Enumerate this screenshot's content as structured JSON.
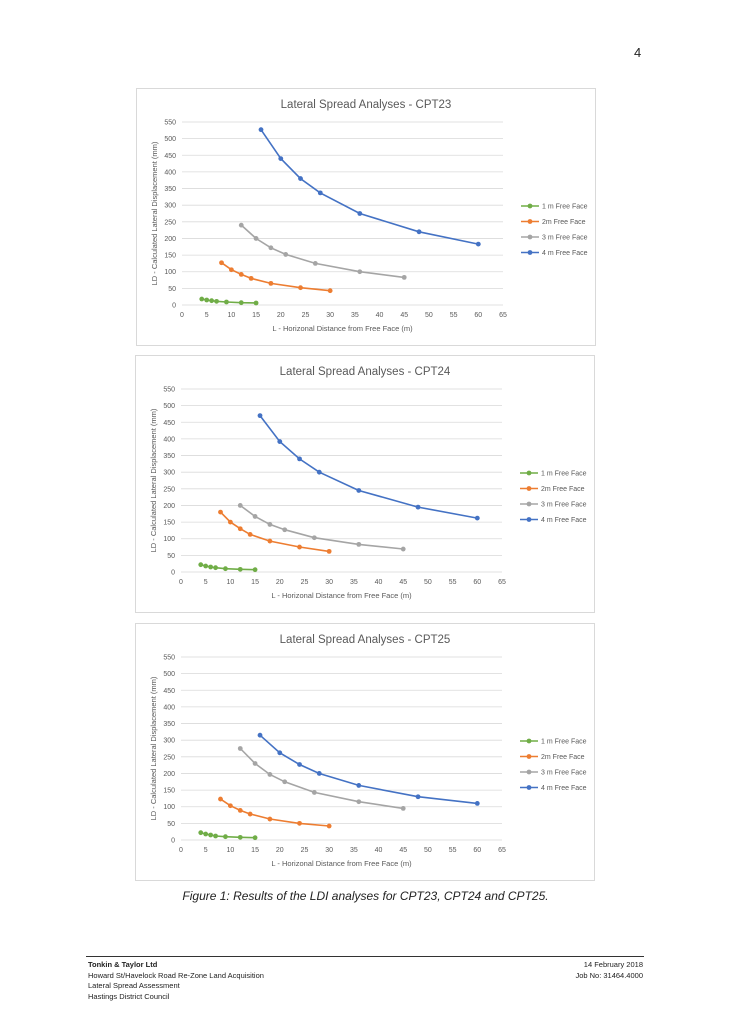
{
  "page_number": "4",
  "caption": "Figure 1: Results of the LDI analyses for CPT23, CPT24 and CPT25.",
  "footer": {
    "company": "Tonkin & Taylor Ltd",
    "project": "Howard St/Havelock Road Re-Zone Land Acquisition",
    "report": "Lateral Spread Assessment",
    "client": "Hastings District Council",
    "date": "14 February 2018",
    "job": "Job No: 31464.4000"
  },
  "colors": {
    "1m": "#70ad47",
    "2m": "#ed7d31",
    "3m": "#a5a5a5",
    "4m": "#4472c4",
    "gridline": "#d9d9d9",
    "tick_text": "#595959"
  },
  "chart_data": [
    {
      "type": "line",
      "title": "Lateral Spread Analyses - CPT23",
      "xlabel": "L - Horizonal Distance from Free Face (m)",
      "ylabel": "LD - Calculated Lateral Displacement (mm)",
      "xlim": [
        0,
        65
      ],
      "ylim": [
        0,
        550
      ],
      "xticks": [
        0,
        5,
        10,
        15,
        20,
        25,
        30,
        35,
        40,
        45,
        50,
        55,
        60,
        65
      ],
      "yticks": [
        0,
        50,
        100,
        150,
        200,
        250,
        300,
        350,
        400,
        450,
        500,
        550
      ],
      "grid": "horizontal",
      "legend_position": "right",
      "series": [
        {
          "name": "1 m Free Face",
          "color_key": "1m",
          "x": [
            4,
            5,
            6,
            7,
            9,
            12,
            15
          ],
          "y": [
            18,
            15,
            13,
            11,
            9,
            7,
            6
          ]
        },
        {
          "name": "2m Free Face",
          "color_key": "2m",
          "x": [
            8,
            10,
            12,
            14,
            18,
            24,
            30
          ],
          "y": [
            127,
            106,
            92,
            80,
            65,
            52,
            43
          ]
        },
        {
          "name": "3 m Free Face",
          "color_key": "3m",
          "x": [
            12,
            15,
            18,
            21,
            27,
            36,
            45
          ],
          "y": [
            240,
            200,
            172,
            152,
            125,
            100,
            83
          ]
        },
        {
          "name": "4 m Free Face",
          "color_key": "4m",
          "x": [
            16,
            20,
            24,
            28,
            36,
            48,
            60
          ],
          "y": [
            527,
            440,
            380,
            337,
            275,
            220,
            183
          ]
        }
      ]
    },
    {
      "type": "line",
      "title": "Lateral Spread Analyses - CPT24",
      "xlabel": "L - Horizonal Distance from Free Face (m)",
      "ylabel": "LD - Calculated Lateral Displacement (mm)",
      "xlim": [
        0,
        65
      ],
      "ylim": [
        0,
        550
      ],
      "xticks": [
        0,
        5,
        10,
        15,
        20,
        25,
        30,
        35,
        40,
        45,
        50,
        55,
        60,
        65
      ],
      "yticks": [
        0,
        50,
        100,
        150,
        200,
        250,
        300,
        350,
        400,
        450,
        500,
        550
      ],
      "grid": "horizontal",
      "legend_position": "right",
      "series": [
        {
          "name": "1 m Free Face",
          "color_key": "1m",
          "x": [
            4,
            5,
            6,
            7,
            9,
            12,
            15
          ],
          "y": [
            22,
            18,
            15,
            13,
            10,
            8,
            7
          ]
        },
        {
          "name": "2m Free Face",
          "color_key": "2m",
          "x": [
            8,
            10,
            12,
            14,
            18,
            24,
            30
          ],
          "y": [
            180,
            150,
            130,
            113,
            93,
            75,
            62
          ]
        },
        {
          "name": "3 m Free Face",
          "color_key": "3m",
          "x": [
            12,
            15,
            18,
            21,
            27,
            36,
            45
          ],
          "y": [
            200,
            167,
            143,
            127,
            103,
            83,
            69
          ]
        },
        {
          "name": "4 m Free Face",
          "color_key": "4m",
          "x": [
            16,
            20,
            24,
            28,
            36,
            48,
            60
          ],
          "y": [
            470,
            392,
            340,
            300,
            245,
            195,
            162
          ]
        }
      ]
    },
    {
      "type": "line",
      "title": "Lateral Spread Analyses - CPT25",
      "xlabel": "L - Horizonal Distance from Free Face (m)",
      "ylabel": "LD - Calculated Lateral Displacement (mm)",
      "xlim": [
        0,
        65
      ],
      "ylim": [
        0,
        550
      ],
      "xticks": [
        0,
        5,
        10,
        15,
        20,
        25,
        30,
        35,
        40,
        45,
        50,
        55,
        60,
        65
      ],
      "yticks": [
        0,
        50,
        100,
        150,
        200,
        250,
        300,
        350,
        400,
        450,
        500,
        550
      ],
      "grid": "horizontal",
      "legend_position": "right",
      "series": [
        {
          "name": "1 m Free Face",
          "color_key": "1m",
          "x": [
            4,
            5,
            6,
            7,
            9,
            12,
            15
          ],
          "y": [
            22,
            18,
            15,
            12,
            10,
            8,
            7
          ]
        },
        {
          "name": "2m Free Face",
          "color_key": "2m",
          "x": [
            8,
            10,
            12,
            14,
            18,
            24,
            30
          ],
          "y": [
            123,
            103,
            89,
            78,
            63,
            50,
            42
          ]
        },
        {
          "name": "3 m Free Face",
          "color_key": "3m",
          "x": [
            12,
            15,
            18,
            21,
            27,
            36,
            45
          ],
          "y": [
            275,
            230,
            197,
            175,
            143,
            115,
            95
          ]
        },
        {
          "name": "4 m Free Face",
          "color_key": "4m",
          "x": [
            16,
            20,
            24,
            28,
            36,
            48,
            60
          ],
          "y": [
            315,
            262,
            227,
            200,
            164,
            130,
            110
          ]
        }
      ]
    }
  ]
}
